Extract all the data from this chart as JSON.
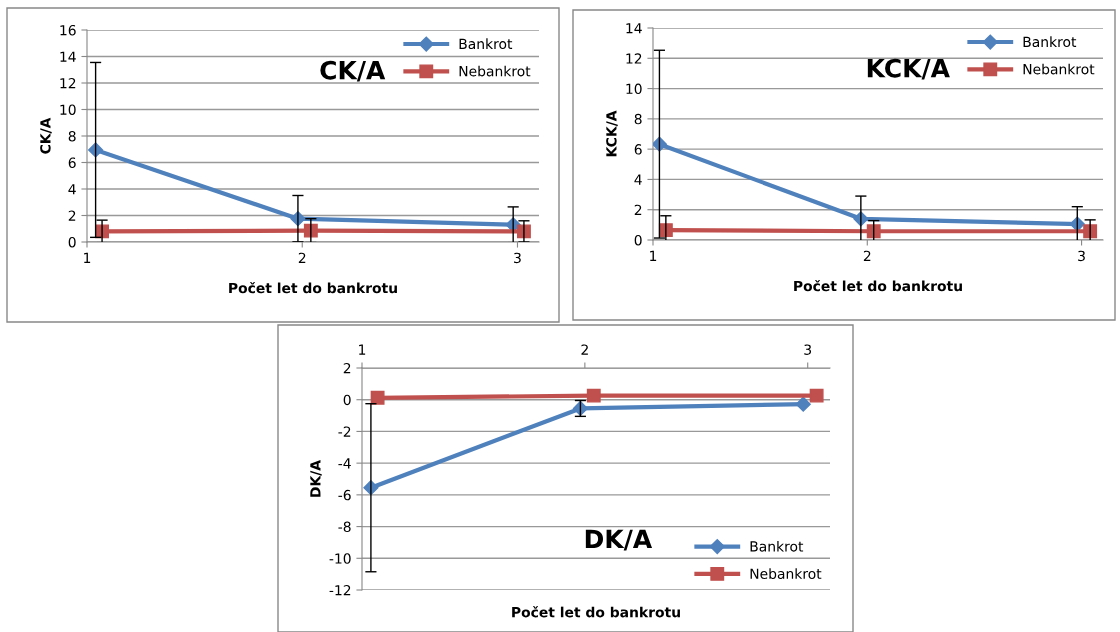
{
  "chart_data": [
    {
      "type": "line",
      "title": "CK/A",
      "xlabel": "Počet let do bankrotu",
      "ylabel": "CK/A",
      "xlim": [
        1,
        3.1
      ],
      "xticks": [
        1,
        2,
        3
      ],
      "ylim": [
        0,
        16
      ],
      "yticks": [
        0,
        2,
        4,
        6,
        8,
        10,
        12,
        14,
        16
      ],
      "grid": "y",
      "legend": "top right",
      "series": [
        {
          "name": "Bankrot",
          "color": "#4f81bd",
          "marker": "diamond",
          "x": [
            1.04,
            1.98,
            2.98
          ],
          "values": [
            6.95,
            1.76,
            1.3
          ],
          "errors": [
            6.6,
            1.75,
            1.35
          ]
        },
        {
          "name": "Nebankrot",
          "color": "#c0504d",
          "marker": "square",
          "x": [
            1.07,
            2.04,
            3.03
          ],
          "values": [
            0.8,
            0.86,
            0.8
          ],
          "errors": [
            0.85,
            0.9,
            0.8
          ]
        }
      ]
    },
    {
      "type": "line",
      "title": "KCK/A",
      "xlabel": "Počet let do bankrotu",
      "ylabel": "KCK/A",
      "xlim": [
        1,
        3.1
      ],
      "xticks": [
        1,
        2,
        3
      ],
      "ylim": [
        0,
        14
      ],
      "yticks": [
        0,
        2,
        4,
        6,
        8,
        10,
        12,
        14
      ],
      "grid": "y",
      "legend": "top right",
      "series": [
        {
          "name": "Bankrot",
          "color": "#4f81bd",
          "marker": "diamond",
          "x": [
            1.03,
            1.97,
            2.98
          ],
          "values": [
            6.33,
            1.4,
            1.05
          ],
          "errors": [
            6.2,
            1.5,
            1.15
          ]
        },
        {
          "name": "Nebankrot",
          "color": "#c0504d",
          "marker": "square",
          "x": [
            1.06,
            2.03,
            3.04
          ],
          "values": [
            0.65,
            0.58,
            0.58
          ],
          "errors": [
            0.95,
            0.7,
            0.75
          ]
        }
      ]
    },
    {
      "type": "line",
      "title": "DK/A",
      "xlabel": "Počet let do bankrotu",
      "ylabel": "DK/A",
      "xlim": [
        1,
        3.1
      ],
      "xticks": [
        1,
        2,
        3
      ],
      "ylim": [
        -12,
        2
      ],
      "yticks": [
        -12,
        -10,
        -8,
        -6,
        -4,
        -2,
        0,
        2
      ],
      "grid": "y",
      "legend": "bottom right",
      "series": [
        {
          "name": "Bankrot",
          "color": "#4f81bd",
          "marker": "diamond",
          "x": [
            1.04,
            1.98,
            2.98
          ],
          "values": [
            -5.55,
            -0.55,
            -0.28
          ],
          "errors": [
            5.3,
            0.5,
            null
          ]
        },
        {
          "name": "Nebankrot",
          "color": "#c0504d",
          "marker": "square",
          "x": [
            1.07,
            2.04,
            3.04
          ],
          "values": [
            0.12,
            0.26,
            0.26
          ],
          "errors": [
            null,
            null,
            null
          ]
        }
      ]
    }
  ]
}
